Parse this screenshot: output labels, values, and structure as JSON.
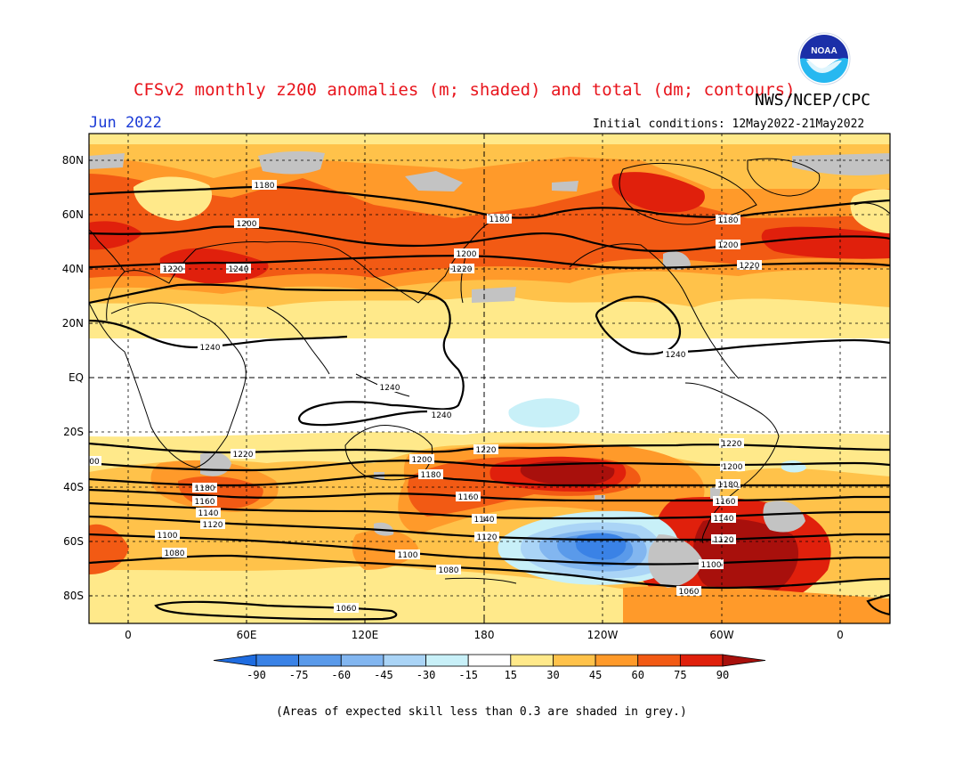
{
  "header": {
    "title": "CFSv2 monthly z200 anomalies (m; shaded) and total (dm; contours)",
    "agency": "NWS/NCEP/CPC",
    "month": "Jun 2022",
    "initial_conditions": "Initial conditions: 12May2022-21May2022",
    "logo_text": "NOAA"
  },
  "map": {
    "lat_labels": [
      "80N",
      "60N",
      "40N",
      "20N",
      "EQ",
      "20S",
      "40S",
      "60S",
      "80S"
    ],
    "lon_labels": [
      "0",
      "60E",
      "120E",
      "180",
      "120W",
      "60W",
      "0"
    ],
    "contour_labels": [
      {
        "text": "1180"
      },
      {
        "text": "1200"
      },
      {
        "text": "1220"
      },
      {
        "text": "1240"
      },
      {
        "text": "1180"
      },
      {
        "text": "1200"
      },
      {
        "text": "1220"
      },
      {
        "text": "1180"
      },
      {
        "text": "1200"
      },
      {
        "text": "1220"
      },
      {
        "text": "1240"
      },
      {
        "text": "1240"
      },
      {
        "text": "1240"
      },
      {
        "text": "1240"
      },
      {
        "text": "1220"
      },
      {
        "text": "1180"
      },
      {
        "text": "1160"
      },
      {
        "text": "1140"
      },
      {
        "text": "1120"
      },
      {
        "text": "1100"
      },
      {
        "text": "1080"
      },
      {
        "text": "1060"
      },
      {
        "text": "1220"
      },
      {
        "text": "1200"
      },
      {
        "text": "1180"
      },
      {
        "text": "1160"
      },
      {
        "text": "1140"
      },
      {
        "text": "1120"
      },
      {
        "text": "1100"
      },
      {
        "text": "1080"
      },
      {
        "text": "1220"
      },
      {
        "text": "1200"
      },
      {
        "text": "1180"
      },
      {
        "text": "1160"
      },
      {
        "text": "1140"
      },
      {
        "text": "1120"
      },
      {
        "text": "1100"
      },
      {
        "text": "1060"
      },
      {
        "text": "00"
      }
    ]
  },
  "colorbar": {
    "labels": [
      "-90",
      "-75",
      "-60",
      "-45",
      "-30",
      "-15",
      "15",
      "30",
      "45",
      "60",
      "75",
      "90"
    ],
    "colors": [
      "#1e6ce0",
      "#3a82e6",
      "#5a9aea",
      "#82b6f0",
      "#aad4f6",
      "#c8f0f8",
      "#ffffff",
      "#ffe98a",
      "#ffc24a",
      "#ff9a2a",
      "#f25a14",
      "#e0200c",
      "#a8100c"
    ]
  },
  "footnote": "(Areas of expected skill less than 0.3 are shaded in grey.)"
}
